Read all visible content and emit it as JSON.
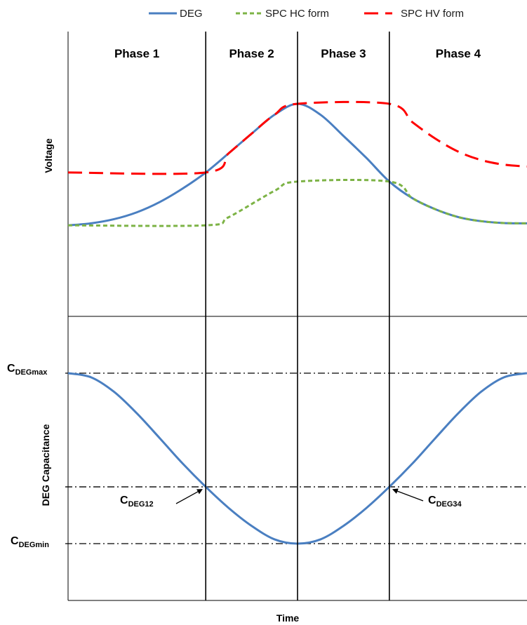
{
  "chart_data": [
    {
      "type": "line",
      "ylabel": "Voltage",
      "legend": {
        "position": "top"
      },
      "phases": [
        "Phase 1",
        "Phase 2",
        "Phase 3",
        "Phase 4"
      ],
      "phase_boundaries": [
        0.3,
        0.5,
        0.7
      ],
      "x_range": [
        0,
        1
      ],
      "y_range": [
        0,
        1
      ],
      "series": [
        {
          "name": "DEG",
          "color": "#4a7fc1",
          "style": "solid",
          "points": [
            [
              0.0,
              0.209
            ],
            [
              0.05,
              0.222
            ],
            [
              0.1,
              0.249
            ],
            [
              0.15,
              0.294
            ],
            [
              0.2,
              0.361
            ],
            [
              0.25,
              0.449
            ],
            [
              0.3,
              0.553
            ],
            [
              0.35,
              0.678
            ],
            [
              0.4,
              0.806
            ],
            [
              0.45,
              0.929
            ],
            [
              0.5,
              1.0
            ],
            [
              0.55,
              0.929
            ],
            [
              0.6,
              0.791
            ],
            [
              0.65,
              0.648
            ],
            [
              0.7,
              0.494
            ],
            [
              0.75,
              0.386
            ],
            [
              0.8,
              0.314
            ],
            [
              0.85,
              0.263
            ],
            [
              0.9,
              0.236
            ],
            [
              0.95,
              0.224
            ],
            [
              1.0,
              0.222
            ]
          ]
        },
        {
          "name": "SPC HC form",
          "color": "#7db346",
          "style": "dashed",
          "points": [
            [
              0.0,
              0.209
            ],
            [
              0.3,
              0.209
            ],
            [
              0.35,
              0.262
            ],
            [
              0.45,
              0.434
            ],
            [
              0.5,
              0.494
            ],
            [
              0.7,
              0.494
            ],
            [
              0.75,
              0.386
            ],
            [
              0.8,
              0.314
            ],
            [
              0.85,
              0.263
            ],
            [
              0.9,
              0.236
            ],
            [
              0.95,
              0.224
            ],
            [
              1.0,
              0.222
            ]
          ]
        },
        {
          "name": "SPC HV form",
          "color": "#ff0000",
          "style": "long-dash",
          "points": [
            [
              0.0,
              0.553
            ],
            [
              0.3,
              0.553
            ],
            [
              0.35,
              0.678
            ],
            [
              0.4,
              0.806
            ],
            [
              0.45,
              0.929
            ],
            [
              0.5,
              1.0
            ],
            [
              0.7,
              1.0
            ],
            [
              0.75,
              0.881
            ],
            [
              0.8,
              0.774
            ],
            [
              0.85,
              0.689
            ],
            [
              0.9,
              0.634
            ],
            [
              0.95,
              0.604
            ],
            [
              1.0,
              0.592
            ]
          ]
        }
      ]
    },
    {
      "type": "line",
      "xlabel": "Time",
      "ylabel": "DEG Capacitance",
      "x_range": [
        0,
        1
      ],
      "y_range": [
        0,
        1
      ],
      "reference_levels": [
        {
          "name": "DEGmax",
          "value": 1.0
        },
        {
          "name": "DEG12",
          "value": 0.333
        },
        {
          "name": "DEGmin",
          "value": 0.0
        }
      ],
      "annotations": [
        {
          "main": "C",
          "sub": "DEGmax",
          "y": 1.0
        },
        {
          "main": "C",
          "sub": "DEG12",
          "point": [
            0.3,
            0.333
          ]
        },
        {
          "main": "C",
          "sub": "DEG34",
          "point": [
            0.7,
            0.333
          ]
        },
        {
          "main": "C",
          "sub": "DEGmin",
          "y": 0.0
        }
      ],
      "series": [
        {
          "name": "DEG",
          "color": "#4a7fc1",
          "points": [
            [
              0.0,
              1.0
            ],
            [
              0.05,
              0.976
            ],
            [
              0.1,
              0.891
            ],
            [
              0.15,
              0.764
            ],
            [
              0.2,
              0.618
            ],
            [
              0.25,
              0.469
            ],
            [
              0.3,
              0.333
            ],
            [
              0.35,
              0.209
            ],
            [
              0.4,
              0.104
            ],
            [
              0.45,
              0.025
            ],
            [
              0.5,
              0.0
            ],
            [
              0.55,
              0.025
            ],
            [
              0.6,
              0.104
            ],
            [
              0.65,
              0.209
            ],
            [
              0.7,
              0.333
            ],
            [
              0.75,
              0.469
            ],
            [
              0.8,
              0.618
            ],
            [
              0.85,
              0.764
            ],
            [
              0.9,
              0.891
            ],
            [
              0.95,
              0.976
            ],
            [
              1.0,
              1.0
            ]
          ]
        }
      ]
    }
  ]
}
